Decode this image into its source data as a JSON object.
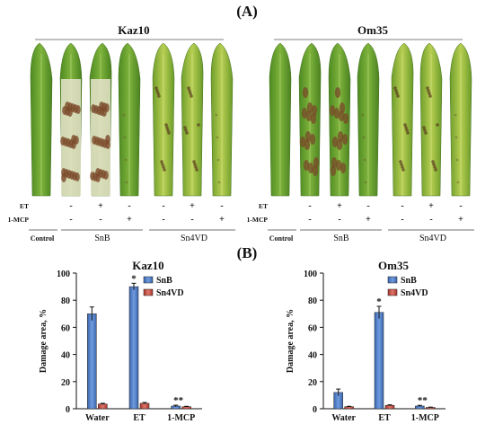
{
  "panel_a": {
    "label": "(A)",
    "cultivars": [
      {
        "name": "Kaz10",
        "leaves": [
          {
            "group": "Control",
            "et": "",
            "mcp": "",
            "damage": "none"
          },
          {
            "group": "SnB",
            "et": "-",
            "mcp": "-",
            "damage": "severe"
          },
          {
            "group": "SnB",
            "et": "+",
            "mcp": "-",
            "damage": "severe"
          },
          {
            "group": "SnB",
            "et": "-",
            "mcp": "+",
            "damage": "light"
          },
          {
            "group": "Sn4VD",
            "et": "-",
            "mcp": "-",
            "damage": "spots"
          },
          {
            "group": "Sn4VD",
            "et": "+",
            "mcp": "-",
            "damage": "spots"
          },
          {
            "group": "Sn4VD",
            "et": "-",
            "mcp": "+",
            "damage": "faint"
          }
        ]
      },
      {
        "name": "Om35",
        "leaves": [
          {
            "group": "Control",
            "et": "",
            "mcp": "",
            "damage": "none"
          },
          {
            "group": "SnB",
            "et": "-",
            "mcp": "-",
            "damage": "moderate"
          },
          {
            "group": "SnB",
            "et": "+",
            "mcp": "-",
            "damage": "moderate"
          },
          {
            "group": "SnB",
            "et": "-",
            "mcp": "+",
            "damage": "faint"
          },
          {
            "group": "Sn4VD",
            "et": "-",
            "mcp": "-",
            "damage": "spots"
          },
          {
            "group": "Sn4VD",
            "et": "+",
            "mcp": "-",
            "damage": "spots"
          },
          {
            "group": "Sn4VD",
            "et": "-",
            "mcp": "+",
            "damage": "faint"
          }
        ]
      }
    ],
    "row_labels": [
      "ET",
      "1-MCP"
    ],
    "control_label": "Control",
    "et_mcp_values": [
      [
        "-",
        "-"
      ],
      [
        "-",
        "-"
      ],
      [
        "+",
        "-"
      ],
      [
        "-",
        "+"
      ],
      [
        "-",
        "-"
      ],
      [
        "+",
        "-"
      ],
      [
        "-",
        "+"
      ]
    ],
    "group_labels": [
      "SnB",
      "Sn4VD"
    ],
    "leaf_colors": {
      "green": "#5f9a2e",
      "light": "#9cc24a",
      "necrosis": "#7a4a2a",
      "bleached": "#e8e4cc"
    }
  },
  "panel_b": {
    "label": "(B)"
  },
  "chart_data": [
    {
      "type": "bar",
      "title": "Kaz10",
      "categories": [
        "Water",
        "ET",
        "1-MCP"
      ],
      "series": [
        {
          "name": "SnB",
          "values": [
            70,
            90,
            2
          ],
          "errors": [
            5,
            2.5,
            0.6
          ],
          "color": "#4f7fc5"
        },
        {
          "name": "Sn4VD",
          "values": [
            3.5,
            4,
            1.5
          ],
          "errors": [
            0.5,
            0.6,
            0.3
          ],
          "color": "#c94a3f"
        }
      ],
      "annotations": [
        {
          "category": "ET",
          "series": "SnB",
          "text": "*"
        },
        {
          "category": "1-MCP",
          "series": "SnB",
          "text": "**"
        }
      ],
      "xlabel": "",
      "ylabel": "Damage area, %",
      "ylim": [
        0,
        100
      ],
      "yticks": [
        0,
        20,
        40,
        60,
        80,
        100
      ],
      "legend": "top-right",
      "grid": false
    },
    {
      "type": "bar",
      "title": "Om35",
      "categories": [
        "Water",
        "ET",
        "1-MCP"
      ],
      "series": [
        {
          "name": "SnB",
          "values": [
            12,
            71,
            2
          ],
          "errors": [
            2.5,
            4.5,
            0.5
          ],
          "color": "#4f7fc5"
        },
        {
          "name": "Sn4VD",
          "values": [
            1.5,
            2.5,
            1
          ],
          "errors": [
            0.3,
            0.4,
            0.2
          ],
          "color": "#c94a3f"
        }
      ],
      "annotations": [
        {
          "category": "ET",
          "series": "SnB",
          "text": "*"
        },
        {
          "category": "1-MCP",
          "series": "SnB",
          "text": "**"
        }
      ],
      "xlabel": "",
      "ylabel": "Damage area, %",
      "ylim": [
        0,
        100
      ],
      "yticks": [
        0,
        20,
        40,
        60,
        80,
        100
      ],
      "legend": "top-right",
      "grid": false
    }
  ]
}
